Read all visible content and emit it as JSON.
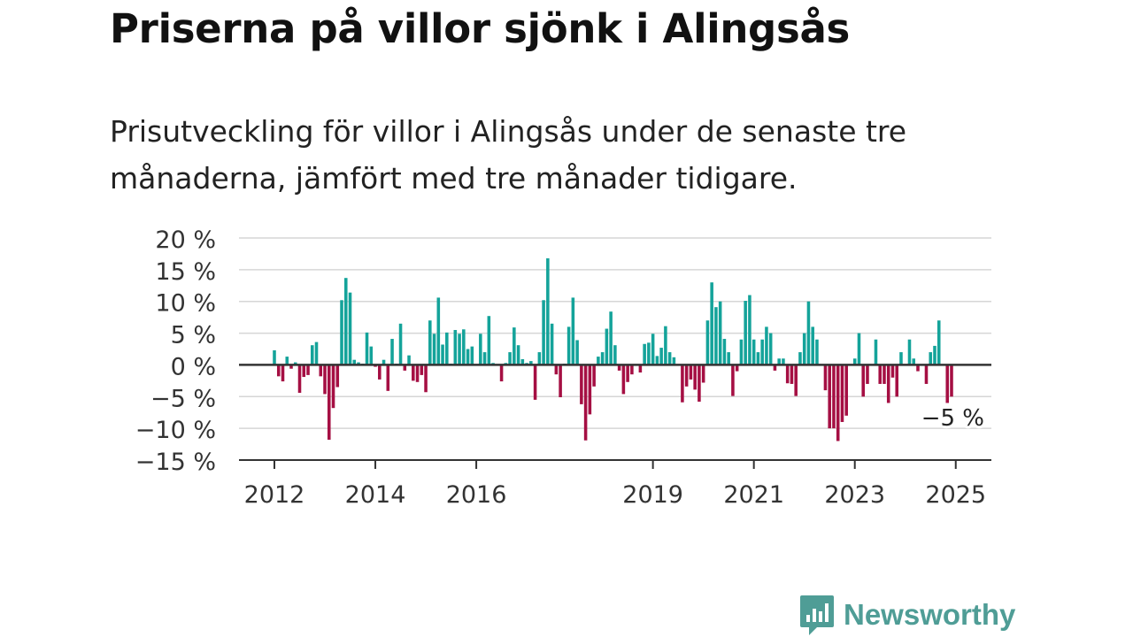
{
  "title": "Priserna på villor sjönk i Alingsås",
  "subtitle": "Prisutveckling för villor i Alingsås under de senaste tre månaderna, jämfört med tre månader tidigare.",
  "brand": {
    "name": "Newsworthy",
    "icon": "newsworthy-logo-icon",
    "color": "#4f9d96"
  },
  "colors": {
    "positive": "#14a39a",
    "negative": "#a50f43",
    "grid": "#d6d6d6",
    "zero_line": "#333333"
  },
  "chart_data": {
    "type": "bar",
    "title": "Priserna på villor sjönk i Alingsås",
    "xlabel": "",
    "ylabel": "",
    "x_unit": "month",
    "x_start": "2012-01",
    "ylim": [
      -15,
      20
    ],
    "yticks": [
      20,
      15,
      10,
      5,
      0,
      -5,
      -10,
      -15
    ],
    "ytick_labels": [
      "20 %",
      "15 %",
      "10 %",
      "5 %",
      "0 %",
      "−5 %",
      "−10 %",
      "−15 %"
    ],
    "xticks": [
      "2012",
      "2014",
      "2016",
      "2019",
      "2021",
      "2023",
      "2025"
    ],
    "xtick_months": [
      "2012-01",
      "2014-01",
      "2016-01",
      "2019-07",
      "2021-07",
      "2023-07",
      "2025-07"
    ],
    "grid": true,
    "annotation": {
      "text": "−5 %",
      "month": "2025-07",
      "value": -5
    },
    "values": [
      2.3,
      -1.8,
      -2.6,
      1.3,
      -0.6,
      0.4,
      -4.4,
      -1.9,
      -1.6,
      3.1,
      3.6,
      -1.8,
      -4.6,
      -11.8,
      -6.8,
      -3.5,
      10.2,
      13.7,
      11.4,
      0.8,
      0.4,
      0.2,
      5.1,
      2.9,
      -0.3,
      -2.3,
      0.8,
      -4.1,
      4.1,
      0.2,
      6.5,
      -0.9,
      1.5,
      -2.5,
      -2.7,
      -1.6,
      -4.3,
      7.0,
      4.9,
      10.6,
      3.2,
      5.1,
      0.2,
      5.5,
      4.9,
      5.6,
      2.5,
      2.9,
      0.1,
      4.9,
      2.0,
      7.7,
      0.3,
      0.1,
      -2.6,
      0.3,
      2.0,
      5.9,
      3.1,
      0.9,
      0.3,
      0.6,
      -5.5,
      2.0,
      10.2,
      16.8,
      6.5,
      -1.5,
      -5.1,
      0.2,
      6.0,
      10.6,
      3.9,
      -6.2,
      -11.9,
      -7.8,
      -3.4,
      1.3,
      2.0,
      5.7,
      8.4,
      3.1,
      -0.9,
      -4.6,
      -2.7,
      -1.5,
      0.1,
      -1.2,
      3.3,
      3.5,
      4.9,
      1.4,
      2.7,
      6.1,
      2.0,
      1.2,
      0.1,
      -5.9,
      -3.4,
      -2.3,
      -3.9,
      -5.8,
      -2.8,
      7.0,
      13.0,
      9.1,
      10.0,
      4.1,
      2.0,
      -4.9,
      -1.0,
      4.0,
      10.1,
      11.0,
      4.0,
      2.0,
      4.0,
      6.0,
      5.0,
      -0.9,
      1.0,
      1.0,
      -2.9,
      -3.0,
      -4.9,
      2.0,
      5.0,
      10.0,
      6.0,
      4.0,
      0.1,
      -4.0,
      -10.0,
      -10.0,
      -12.0,
      -9.0,
      -8.0,
      0.1,
      1.0,
      5.0,
      -5.0,
      -3.0,
      0.1,
      4.0,
      -3.0,
      -3.0,
      -6.0,
      -2.0,
      -5.0,
      2.0,
      0.1,
      4.0,
      1.0,
      -1.0,
      0.1,
      -3.0,
      2.0,
      3.0,
      7.0,
      0.1,
      -6.0,
      -5.0
    ]
  }
}
